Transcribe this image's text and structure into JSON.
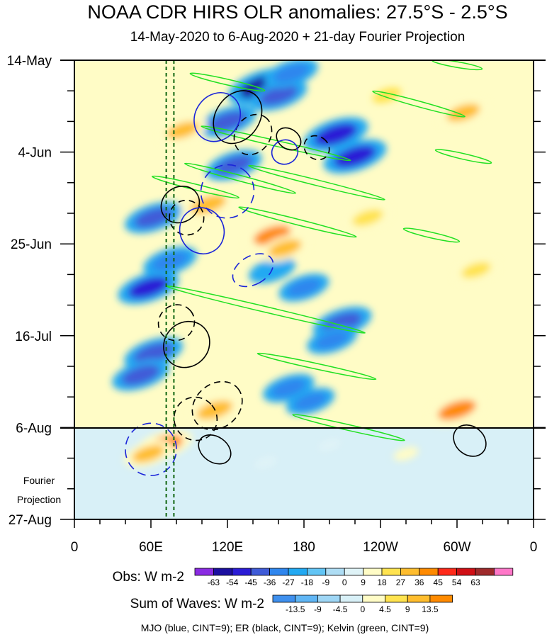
{
  "chart_data": {
    "type": "heatmap",
    "title": "NOAA CDR HIRS OLR anomalies: 27.5°S - 2.5°S",
    "subtitle": "14-May-2020 to 6-Aug-2020 + 21-day Fourier Projection",
    "x_ticks": [
      "0",
      "60E",
      "120E",
      "180",
      "120W",
      "60W",
      "0"
    ],
    "x_values": [
      0,
      60,
      120,
      180,
      240,
      300,
      360
    ],
    "xlim": [
      0,
      360
    ],
    "y_ticks": [
      "14-May",
      "4-Jun",
      "25-Jun",
      "16-Jul",
      "6-Aug",
      "27-Aug"
    ],
    "y_days": [
      0,
      21,
      42,
      63,
      84,
      105
    ],
    "ylim_days": [
      0,
      105
    ],
    "projection_start_day": 84,
    "projection_label": [
      "Fourier",
      "Projection"
    ],
    "reference_lon_lines": [
      72,
      78
    ],
    "obs_colorbar": {
      "label": "Obs: W m-2",
      "levels": [
        "-63",
        "-54",
        "-45",
        "-36",
        "-27",
        "-18",
        "-9",
        "0",
        "9",
        "18",
        "27",
        "36",
        "45",
        "54",
        "63"
      ],
      "colors": [
        "#8a2be2",
        "#1c0fa0",
        "#2b1cd6",
        "#3f5bd8",
        "#2f86ee",
        "#22a9f2",
        "#62c5f5",
        "#aeddf4",
        "#dff3f7",
        "#fffcc6",
        "#ffe34f",
        "#ffbd2e",
        "#ff8a00",
        "#ff2a1a",
        "#d00f15",
        "#9e2a2b",
        "#ff77c8"
      ]
    },
    "waves_colorbar": {
      "label": "Sum of Waves: W m-2",
      "levels": [
        "-13.5",
        "-9",
        "-4.5",
        "0",
        "4.5",
        "9",
        "13.5"
      ],
      "colors": [
        "#3f90ee",
        "#60b6f5",
        "#9ed6f5",
        "#d8f0f7",
        "#fffcc6",
        "#ffe34f",
        "#ffbd2e",
        "#ff8a00"
      ]
    },
    "contour_legend": "MJO (blue, CINT=9); ER (black, CINT=9); Kelvin (green, CINT=9)",
    "series": [
      {
        "name": "MJO",
        "color": "#1a24d9",
        "contour_interval": 9
      },
      {
        "name": "ER",
        "color": "#000000",
        "contour_interval": 9
      },
      {
        "name": "Kelvin",
        "color": "#22e022",
        "contour_interval": 9
      }
    ],
    "features": [
      {
        "type": "blob",
        "lon": 148,
        "day": 6,
        "value": -58
      },
      {
        "type": "blob",
        "lon": 160,
        "day": 8,
        "value": -40
      },
      {
        "type": "blob",
        "lon": 170,
        "day": 3,
        "value": -35
      },
      {
        "type": "blob",
        "lon": 205,
        "day": 17,
        "value": -50
      },
      {
        "type": "blob",
        "lon": 220,
        "day": 22,
        "value": -48
      },
      {
        "type": "blob",
        "lon": 120,
        "day": 14,
        "value": -40
      },
      {
        "type": "blob",
        "lon": 125,
        "day": 24,
        "value": -38
      },
      {
        "type": "blob",
        "lon": 62,
        "day": 36,
        "value": -40
      },
      {
        "type": "blob",
        "lon": 75,
        "day": 46,
        "value": -35
      },
      {
        "type": "blob",
        "lon": 58,
        "day": 52,
        "value": -45
      },
      {
        "type": "blob",
        "lon": 62,
        "day": 67,
        "value": -42
      },
      {
        "type": "blob",
        "lon": 52,
        "day": 72,
        "value": -40
      },
      {
        "type": "blob",
        "lon": 210,
        "day": 60,
        "value": -42
      },
      {
        "type": "blob",
        "lon": 202,
        "day": 64,
        "value": -30
      },
      {
        "type": "blob",
        "lon": 168,
        "day": 75,
        "value": -32
      },
      {
        "type": "blob",
        "lon": 185,
        "day": 78,
        "value": -28
      },
      {
        "type": "blob",
        "lon": 180,
        "day": 52,
        "value": -30
      },
      {
        "type": "blob",
        "lon": 155,
        "day": 48,
        "value": -25
      },
      {
        "type": "blob",
        "lon": 105,
        "day": 33,
        "value": 35
      },
      {
        "type": "blob",
        "lon": 155,
        "day": 40,
        "value": 38
      },
      {
        "type": "blob",
        "lon": 165,
        "day": 43,
        "value": 30
      },
      {
        "type": "blob",
        "lon": 110,
        "day": 80,
        "value": 35
      },
      {
        "type": "blob",
        "lon": 70,
        "day": 88,
        "value": 40
      },
      {
        "type": "blob",
        "lon": 58,
        "day": 90,
        "value": 28
      },
      {
        "type": "blob",
        "lon": 300,
        "day": 80,
        "value": 40
      },
      {
        "type": "blob",
        "lon": 305,
        "day": 12,
        "value": 30
      },
      {
        "type": "blob",
        "lon": 230,
        "day": 36,
        "value": 25
      },
      {
        "type": "blob",
        "lon": 85,
        "day": 16,
        "value": 28
      },
      {
        "type": "blob",
        "lon": 245,
        "day": 8,
        "value": 20
      },
      {
        "type": "blob",
        "lon": 315,
        "day": 48,
        "value": 22
      },
      {
        "type": "blob",
        "lon": 260,
        "day": 90,
        "value": 12
      },
      {
        "type": "blob",
        "lon": 150,
        "day": 92,
        "value": 8
      },
      {
        "type": "blob",
        "lon": 200,
        "day": 88,
        "value": 8
      }
    ],
    "kelvin_contours": [
      {
        "lon": 120,
        "day": 5,
        "len": 60,
        "tilt": 4
      },
      {
        "lon": 158,
        "day": 19,
        "len": 120,
        "tilt": 8
      },
      {
        "lon": 190,
        "day": 28,
        "len": 110,
        "tilt": 8
      },
      {
        "lon": 130,
        "day": 27,
        "len": 90,
        "tilt": 7
      },
      {
        "lon": 175,
        "day": 37,
        "len": 95,
        "tilt": 7
      },
      {
        "lon": 95,
        "day": 29,
        "len": 70,
        "tilt": 5
      },
      {
        "lon": 150,
        "day": 57,
        "len": 160,
        "tilt": 11
      },
      {
        "lon": 190,
        "day": 70,
        "len": 95,
        "tilt": 6
      },
      {
        "lon": 215,
        "day": 84,
        "len": 90,
        "tilt": 6
      },
      {
        "lon": 270,
        "day": 10,
        "len": 75,
        "tilt": 6
      },
      {
        "lon": 305,
        "day": 22,
        "len": 45,
        "tilt": 3
      },
      {
        "lon": 280,
        "day": 40,
        "len": 45,
        "tilt": 3
      },
      {
        "lon": 300,
        "day": 1,
        "len": 40,
        "tilt": 2
      }
    ],
    "er_contours": [
      {
        "lon": 83,
        "day": 33,
        "rx": 28,
        "ry": 4,
        "rot": -35,
        "dashed": false
      },
      {
        "lon": 88,
        "day": 36,
        "rx": 24,
        "ry": 4,
        "rot": -40,
        "dashed": true
      },
      {
        "lon": 128,
        "day": 13,
        "rx": 40,
        "ry": 5,
        "rot": -55,
        "dashed": false
      },
      {
        "lon": 140,
        "day": 17,
        "rx": 30,
        "ry": 4,
        "rot": -55,
        "dashed": true
      },
      {
        "lon": 168,
        "day": 18,
        "rx": 14,
        "ry": 3,
        "rot": -55,
        "dashed": false
      },
      {
        "lon": 190,
        "day": 20,
        "rx": 16,
        "ry": 3,
        "rot": -55,
        "dashed": true
      },
      {
        "lon": 80,
        "day": 60,
        "rx": 26,
        "ry": 4,
        "rot": -40,
        "dashed": true
      },
      {
        "lon": 88,
        "day": 65,
        "rx": 34,
        "ry": 5,
        "rot": -45,
        "dashed": false
      },
      {
        "lon": 112,
        "day": 79,
        "rx": 38,
        "ry": 5,
        "rot": -40,
        "dashed": true
      },
      {
        "lon": 95,
        "day": 82,
        "rx": 30,
        "ry": 5,
        "rot": -40,
        "dashed": true
      },
      {
        "lon": 110,
        "day": 89,
        "rx": 18,
        "ry": 4,
        "rot": -55,
        "dashed": false
      },
      {
        "lon": 310,
        "day": 87,
        "rx": 20,
        "ry": 4,
        "rot": -50,
        "dashed": false
      }
    ],
    "mjo_contours": [
      {
        "lon": 112,
        "day": 13,
        "rx": 36,
        "ry": 5,
        "rot": -55,
        "dashed": false
      },
      {
        "lon": 120,
        "day": 30,
        "rx": 38,
        "ry": 6,
        "rot": -50,
        "dashed": true
      },
      {
        "lon": 100,
        "day": 39,
        "rx": 33,
        "ry": 5,
        "rot": 62,
        "dashed": false
      },
      {
        "lon": 140,
        "day": 48,
        "rx": 20,
        "ry": 5,
        "rot": 60,
        "dashed": true
      },
      {
        "lon": 165,
        "day": 21,
        "rx": 17,
        "ry": 3,
        "rot": 70,
        "dashed": false
      },
      {
        "lon": 60,
        "day": 89,
        "rx": 36,
        "ry": 6,
        "rot": 12,
        "dashed": true
      }
    ]
  }
}
